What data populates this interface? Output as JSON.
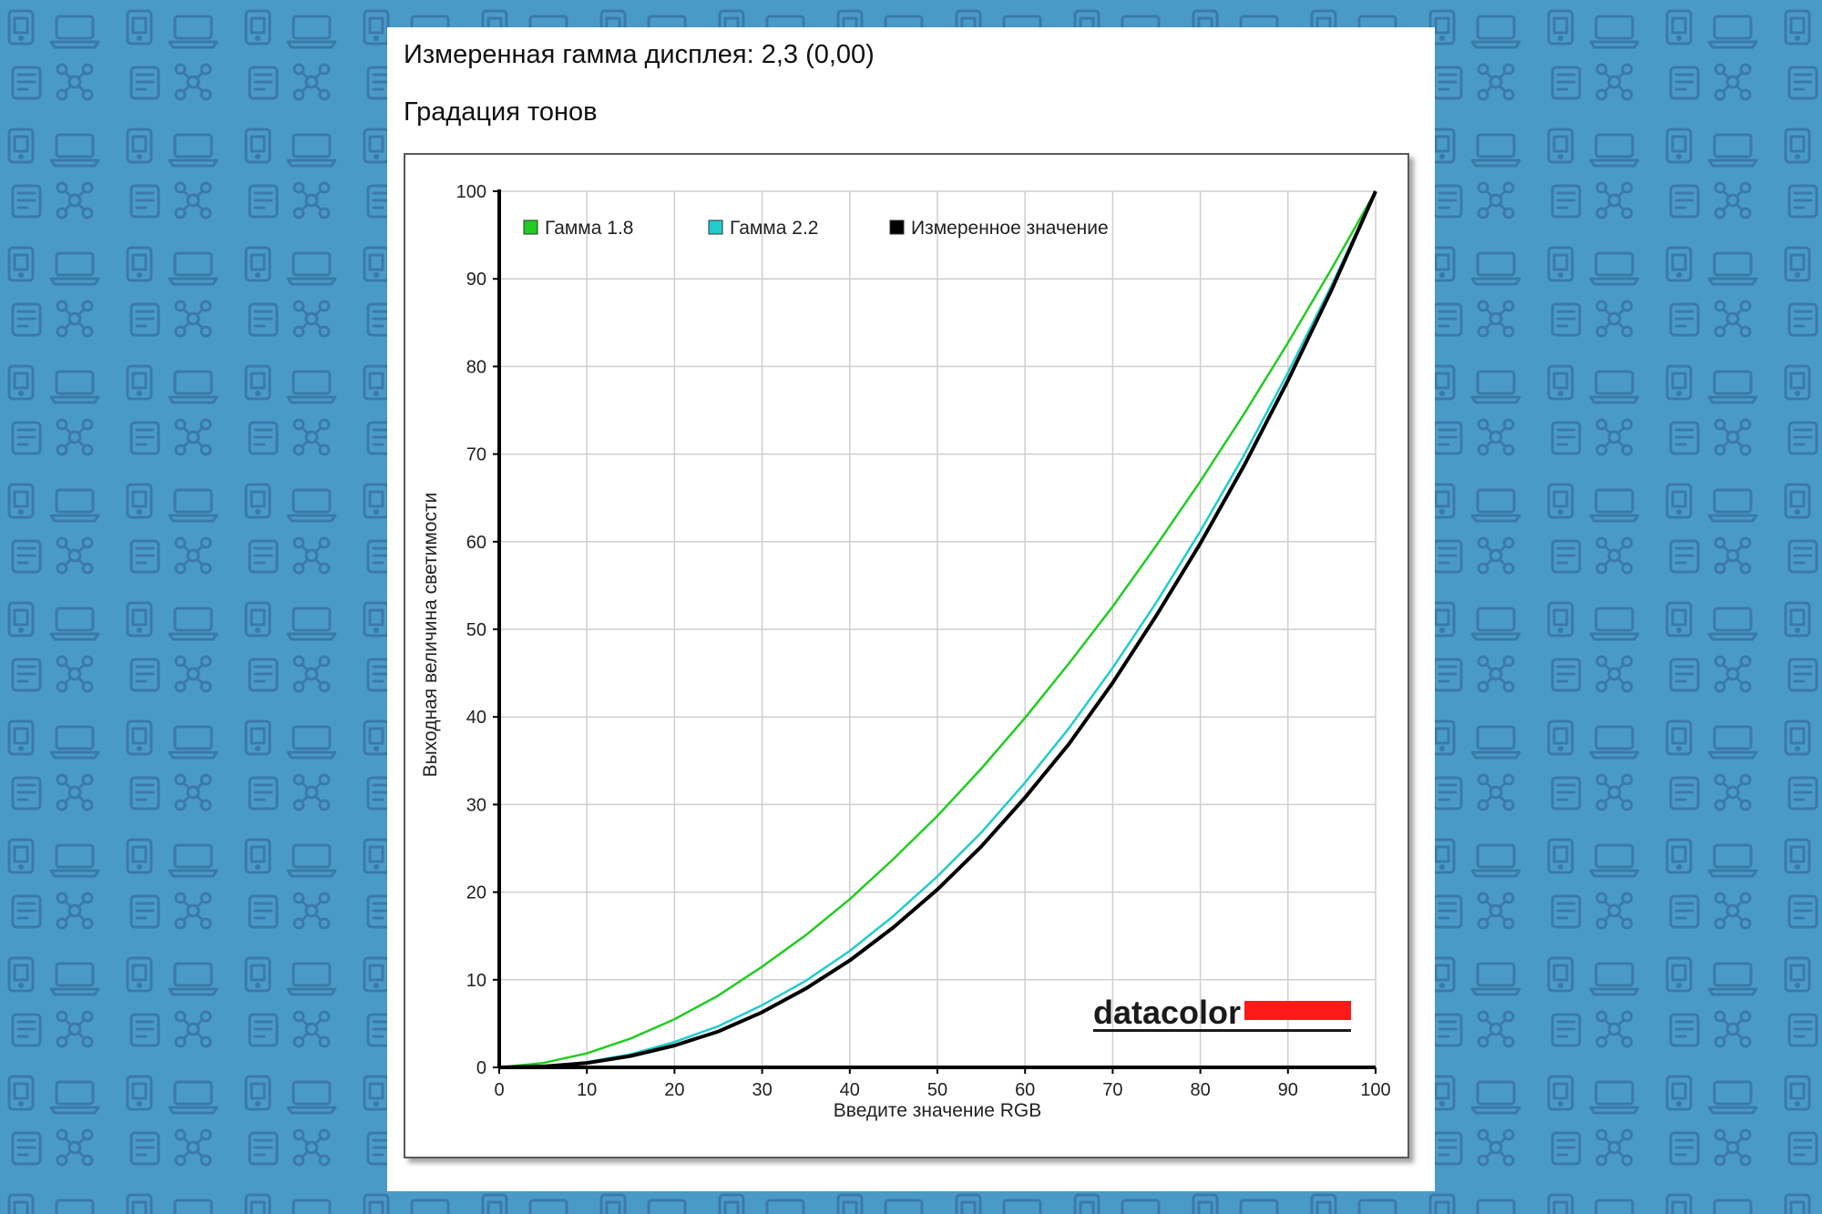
{
  "header": {
    "measured_gamma": "Измеренная гамма дисплея: 2,3 (0,00)",
    "section_title": "Градация тонов"
  },
  "chart_data": {
    "type": "line",
    "xlabel": "Введите значение RGB",
    "ylabel": "Выходная величина светимости",
    "xlim": [
      0,
      100
    ],
    "ylim": [
      0,
      100
    ],
    "x_ticks": [
      0,
      10,
      20,
      30,
      40,
      50,
      60,
      70,
      80,
      90,
      100
    ],
    "y_ticks": [
      0,
      10,
      20,
      30,
      40,
      50,
      60,
      70,
      80,
      90,
      100
    ],
    "grid": true,
    "legend_position": "top-left",
    "x": [
      0,
      5,
      10,
      15,
      20,
      25,
      30,
      35,
      40,
      45,
      50,
      55,
      60,
      65,
      70,
      75,
      80,
      85,
      90,
      95,
      100
    ],
    "series": [
      {
        "name": "Гамма 1.8",
        "color": "#22cc22",
        "values": [
          0,
          0.5,
          1.6,
          3.3,
          5.5,
          8.2,
          11.5,
          15.1,
          19.2,
          23.8,
          28.7,
          34.1,
          39.9,
          46.1,
          52.6,
          59.6,
          66.9,
          74.6,
          82.7,
          91.2,
          100
        ]
      },
      {
        "name": "Гамма 2.2",
        "color": "#22cccc",
        "values": [
          0,
          0.1,
          0.6,
          1.5,
          2.9,
          4.7,
          7.1,
          9.9,
          13.3,
          17.3,
          21.8,
          26.8,
          32.5,
          38.7,
          45.6,
          53.1,
          61.2,
          69.9,
          79.3,
          89.3,
          100
        ]
      },
      {
        "name": "Измеренное значение",
        "color": "#000000",
        "values": [
          0,
          0.1,
          0.5,
          1.3,
          2.5,
          4.1,
          6.3,
          9.0,
          12.2,
          16.0,
          20.3,
          25.2,
          30.8,
          36.9,
          43.9,
          51.6,
          59.8,
          68.7,
          78.4,
          88.8,
          100
        ]
      }
    ]
  },
  "brand": {
    "logo_text": "datacolor",
    "logo_accent_color": "#ff1a1a"
  }
}
